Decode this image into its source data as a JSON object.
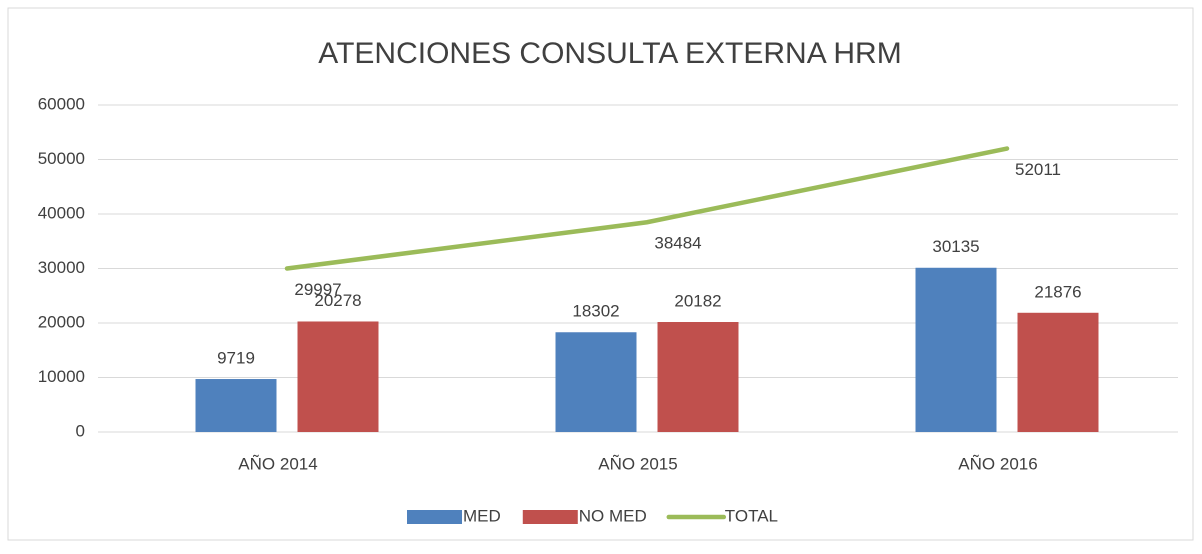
{
  "chart_data": {
    "type": "bar",
    "title": "ATENCIONES CONSULTA EXTERNA  HRM",
    "categories": [
      "AÑO 2014",
      "AÑO 2015",
      "AÑO 2016"
    ],
    "series": [
      {
        "name": "MED",
        "color": "#4f81bd",
        "values": [
          9719,
          18302,
          30135
        ]
      },
      {
        "name": "NO MED",
        "color": "#c0504d",
        "values": [
          20278,
          20182,
          21876
        ]
      },
      {
        "name": "TOTAL",
        "color": "#9bbb59",
        "type": "line",
        "values": [
          29997,
          38484,
          52011
        ]
      }
    ],
    "ylim": [
      0,
      60000
    ],
    "yticks": [
      0,
      10000,
      20000,
      30000,
      40000,
      50000,
      60000
    ],
    "grid": true,
    "legend": "bottom"
  }
}
